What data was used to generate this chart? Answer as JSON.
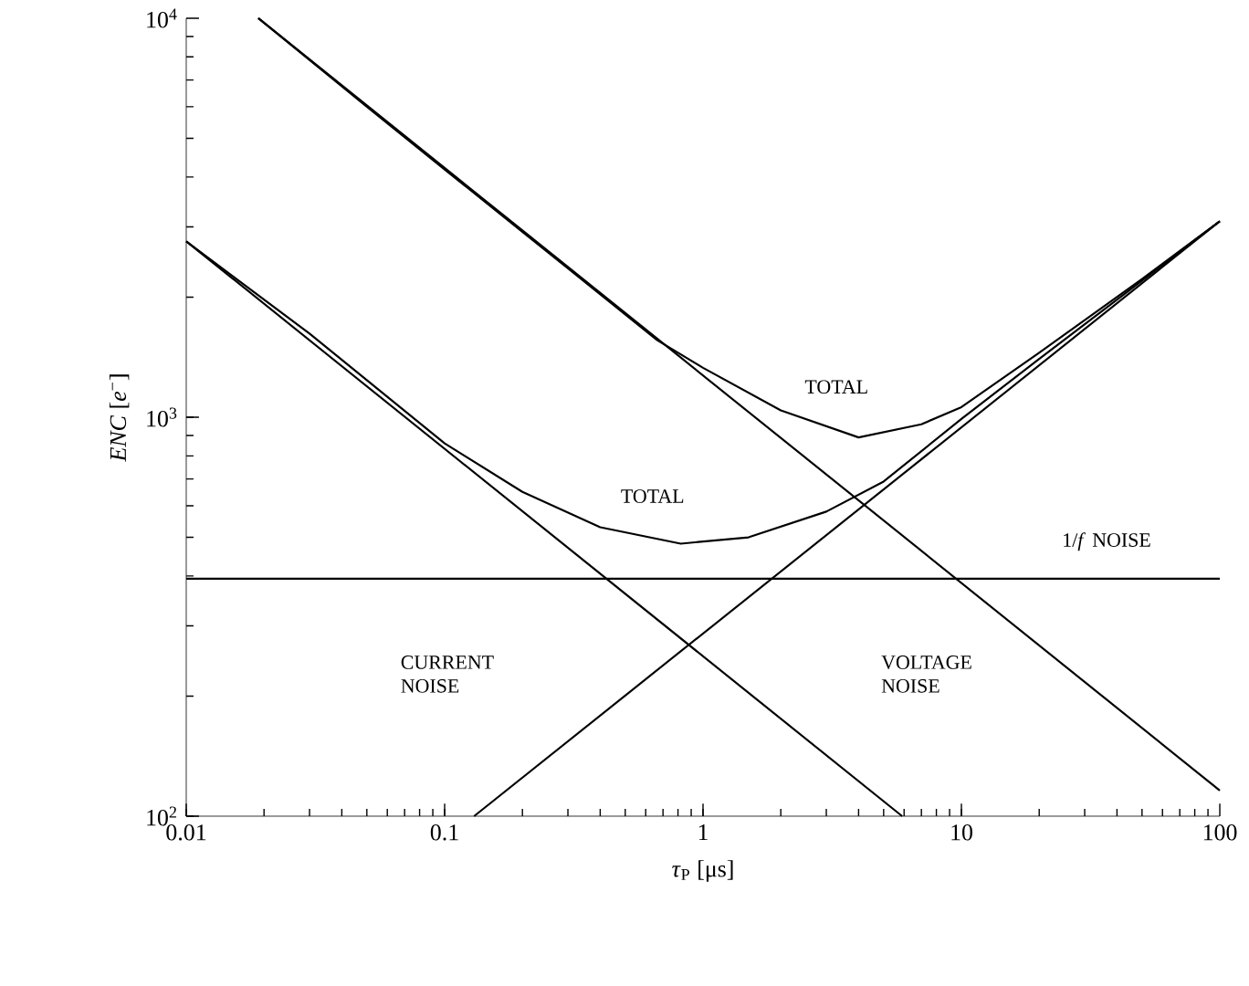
{
  "chart_data": {
    "type": "line",
    "xlabel": "*τ*$_{P}$ [μs]",
    "ylabel": "*ENC* [*e*$^{−}$]",
    "log": "xy",
    "xlim": [
      0.01,
      100
    ],
    "ylim": [
      100,
      10000
    ],
    "xticks": [
      0.01,
      0.1,
      1,
      10,
      100
    ],
    "yticks": [
      {
        "value": 100,
        "label": "10$^{2}$"
      },
      {
        "value": 1000,
        "label": "10$^{3}$"
      },
      {
        "value": 10000,
        "label": "10$^{4}$"
      }
    ],
    "grid": false,
    "marker": "none",
    "line_style": "solid",
    "series": [
      {
        "color": "#000000",
        "x": [
          0.01,
          100
        ],
        "values": [
          394,
          394
        ]
      },
      {
        "color": "#000000",
        "x": [
          0.01,
          5.9
        ],
        "values": [
          2760,
          100
        ]
      },
      {
        "color": "#000000",
        "x": [
          0.019,
          100
        ],
        "values": [
          10000,
          116
        ]
      },
      {
        "color": "#000000",
        "x": [
          0.13,
          100
        ],
        "values": [
          100,
          3100
        ]
      },
      {
        "color": "#000000",
        "x": [
          0.01,
          0.03,
          0.1,
          0.2,
          0.4,
          0.82,
          1.5,
          3,
          5,
          10,
          20,
          50,
          100
        ],
        "values": [
          2760,
          1620,
          860,
          650,
          530,
          482,
          500,
          580,
          690,
          990,
          1400,
          2200,
          3100
        ]
      },
      {
        "color": "#000000",
        "x": [
          0.019,
          0.05,
          0.1,
          0.3,
          0.665,
          1,
          2,
          4,
          7,
          10,
          20,
          50,
          100
        ],
        "values": [
          10000,
          6000,
          4180,
          2360,
          1560,
          1330,
          1040,
          890,
          960,
          1060,
          1450,
          2220,
          3100
        ]
      }
    ],
    "annotations": [
      "TOTAL",
      "TOTAL",
      "1/*f* NOISE",
      "CURRENT NOISE",
      "VOLTAGE NOISE"
    ]
  }
}
